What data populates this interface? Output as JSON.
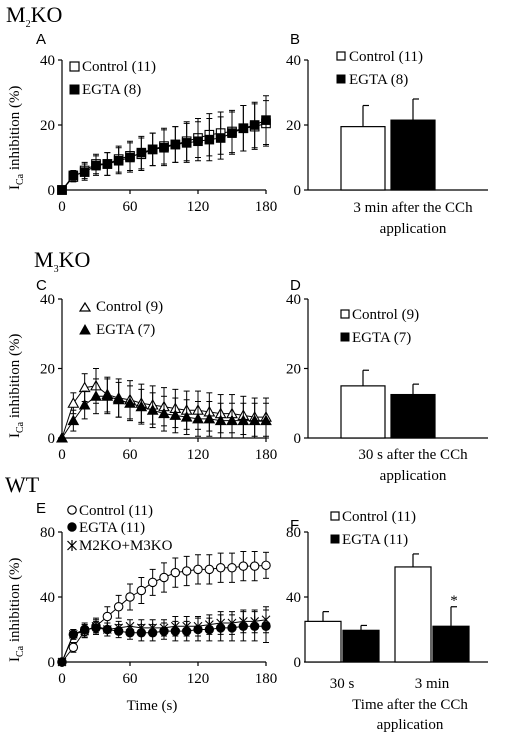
{
  "sections": {
    "m2": {
      "main": "M",
      "sub": "2",
      "rest": "KO"
    },
    "m3": {
      "main": "M",
      "sub": "3",
      "rest": "KO"
    },
    "wt": {
      "text": "WT"
    }
  },
  "ylabel": {
    "main": "I",
    "sub": "Ca",
    "rest": " inhibition (%)"
  },
  "chart_data": [
    {
      "panel": "A",
      "type": "line",
      "ylim": [
        0,
        40
      ],
      "yticks": [
        "0",
        "20",
        "40"
      ],
      "xlim": [
        0,
        180
      ],
      "xticks": [
        "0",
        "60",
        "120",
        "180"
      ],
      "legend_position": "top-left",
      "series": [
        {
          "name": "Control (11)",
          "marker": "square-open",
          "x": [
            0,
            10,
            20,
            30,
            40,
            50,
            60,
            70,
            80,
            90,
            100,
            110,
            120,
            130,
            140,
            150,
            160,
            170,
            180
          ],
          "y": [
            0,
            4,
            6,
            8,
            8,
            9.5,
            10.5,
            11,
            12.5,
            13.5,
            14,
            15,
            16,
            17,
            17.5,
            18,
            19,
            19.5,
            20.5
          ],
          "err": [
            0,
            1.5,
            2.5,
            3,
            3.5,
            4,
            4.5,
            5,
            5,
            5.5,
            5.5,
            6,
            6,
            6.5,
            6.5,
            6.5,
            7,
            7,
            7
          ]
        },
        {
          "name": "EGTA (8)",
          "marker": "square-filled",
          "x": [
            0,
            10,
            20,
            30,
            40,
            50,
            60,
            70,
            80,
            90,
            100,
            110,
            120,
            130,
            140,
            150,
            160,
            170,
            180
          ],
          "y": [
            0,
            4.5,
            5.5,
            7.5,
            8,
            9,
            10,
            11.5,
            12.5,
            13,
            14,
            14.5,
            15,
            15.5,
            16,
            17.5,
            19,
            20,
            21.5
          ],
          "err": [
            0,
            1.5,
            2.5,
            3,
            3.5,
            4,
            4.5,
            5,
            5,
            5.5,
            5.5,
            6,
            6,
            6.5,
            6.5,
            6.5,
            7,
            7,
            7.5
          ]
        }
      ]
    },
    {
      "panel": "B",
      "type": "bar",
      "ylim": [
        0,
        40
      ],
      "yticks": [
        "0",
        "20",
        "40"
      ],
      "legend_position": "top-left",
      "caption": [
        "3 min after the CCh",
        "application"
      ],
      "categories": [
        ""
      ],
      "series": [
        {
          "name": "Control (11)",
          "fill": "#ffffff",
          "values": [
            19.5
          ],
          "err": [
            6.5
          ]
        },
        {
          "name": "EGTA (8)",
          "fill": "#000000",
          "values": [
            21.5
          ],
          "err": [
            6.5
          ]
        }
      ]
    },
    {
      "panel": "C",
      "type": "line",
      "ylim": [
        0,
        40
      ],
      "yticks": [
        "0",
        "20",
        "40"
      ],
      "xlim": [
        0,
        180
      ],
      "xticks": [
        "0",
        "60",
        "120",
        "180"
      ],
      "legend_position": "top-left",
      "series": [
        {
          "name": "Control (9)",
          "marker": "triangle-open",
          "x": [
            0,
            10,
            20,
            30,
            40,
            50,
            60,
            70,
            80,
            90,
            100,
            110,
            120,
            130,
            140,
            150,
            160,
            170,
            180
          ],
          "y": [
            0,
            10,
            14.5,
            15,
            12.5,
            11.5,
            11,
            10,
            9.5,
            9,
            8.5,
            8,
            8,
            7.5,
            7,
            7,
            6.5,
            6,
            6
          ],
          "err": [
            0,
            3,
            4,
            5,
            5,
            5.5,
            5.5,
            5.5,
            5.5,
            5.5,
            5.5,
            5.5,
            5.5,
            5.5,
            5.5,
            5.5,
            5.5,
            5.5,
            5.5
          ]
        },
        {
          "name": "EGTA (7)",
          "marker": "triangle-filled",
          "x": [
            0,
            10,
            20,
            30,
            40,
            50,
            60,
            70,
            80,
            90,
            100,
            110,
            120,
            130,
            140,
            150,
            160,
            170,
            180
          ],
          "y": [
            0,
            5,
            9.5,
            12,
            12,
            11,
            10,
            9,
            8,
            7,
            6.5,
            6,
            5.5,
            5.5,
            5,
            5,
            5,
            5,
            5
          ],
          "err": [
            0,
            3,
            4,
            5,
            5,
            5,
            5,
            5,
            5,
            5,
            5,
            5,
            5,
            5,
            5,
            5,
            5,
            5,
            5
          ]
        }
      ]
    },
    {
      "panel": "D",
      "type": "bar",
      "ylim": [
        0,
        40
      ],
      "yticks": [
        "0",
        "20",
        "40"
      ],
      "legend_position": "top-left",
      "caption": [
        "30 s after the CCh",
        "application"
      ],
      "categories": [
        ""
      ],
      "series": [
        {
          "name": "Control (9)",
          "fill": "#ffffff",
          "values": [
            15
          ],
          "err": [
            4.5
          ]
        },
        {
          "name": "EGTA (7)",
          "fill": "#000000",
          "values": [
            12.5
          ],
          "err": [
            3
          ]
        }
      ]
    },
    {
      "panel": "E",
      "type": "line",
      "ylim": [
        0,
        80
      ],
      "yticks": [
        "0",
        "40",
        "80"
      ],
      "xlim": [
        0,
        180
      ],
      "xticks": [
        "0",
        "60",
        "120",
        "180"
      ],
      "xlabel": "Time (s)",
      "legend_position": "top-left",
      "series": [
        {
          "name": "Control (11)",
          "marker": "circle-open",
          "x": [
            0,
            10,
            20,
            30,
            40,
            50,
            60,
            70,
            80,
            90,
            100,
            110,
            120,
            130,
            140,
            150,
            160,
            170,
            180
          ],
          "y": [
            0,
            9,
            19,
            22,
            28,
            34,
            40,
            44,
            49,
            52,
            55,
            56,
            57,
            57,
            58,
            58,
            59,
            59,
            59.5
          ],
          "err": [
            0,
            3,
            4,
            5,
            6,
            7,
            8,
            8,
            8,
            9,
            9,
            9,
            9,
            9,
            9,
            9,
            9,
            9,
            8
          ]
        },
        {
          "name": "EGTA (11)",
          "marker": "circle-filled",
          "x": [
            0,
            10,
            20,
            30,
            40,
            50,
            60,
            70,
            80,
            90,
            100,
            110,
            120,
            130,
            140,
            150,
            160,
            170,
            180
          ],
          "y": [
            0,
            17,
            20,
            21,
            20,
            19,
            18,
            18,
            18,
            19,
            19,
            19,
            20,
            20,
            21,
            21,
            22,
            22,
            22
          ],
          "err": [
            0,
            3,
            4,
            4,
            4,
            4,
            4,
            5,
            5,
            5,
            6,
            6,
            7,
            7,
            8,
            8,
            9,
            9,
            10
          ]
        },
        {
          "name": "M2KO+M3KO",
          "marker": "star",
          "x": [
            0,
            10,
            20,
            30,
            40,
            50,
            60,
            70,
            80,
            90,
            100,
            110,
            120,
            130,
            140,
            150,
            160,
            170,
            180
          ],
          "y": [
            0,
            17,
            19,
            22,
            20,
            21,
            22,
            21,
            21,
            21,
            22,
            22,
            22,
            23,
            24,
            24,
            25,
            25,
            26
          ],
          "err": [
            0,
            3,
            4,
            4,
            4,
            4,
            4,
            5,
            5,
            5,
            6,
            6,
            6,
            6,
            7,
            7,
            7,
            7,
            8
          ]
        }
      ]
    },
    {
      "panel": "F",
      "type": "bar",
      "ylim": [
        0,
        80
      ],
      "yticks": [
        "0",
        "40",
        "80"
      ],
      "legend_position": "top-left",
      "categories": [
        "30 s",
        "3 min"
      ],
      "caption": [
        "Time after the CCh",
        "application"
      ],
      "significance": {
        "category": "3 min",
        "series": "EGTA (11)",
        "mark": "*"
      },
      "series": [
        {
          "name": "Control (11)",
          "fill": "#ffffff",
          "values": [
            25,
            58.5
          ],
          "err": [
            6,
            8
          ]
        },
        {
          "name": "EGTA (11)",
          "fill": "#000000",
          "values": [
            19.5,
            22
          ],
          "err": [
            3,
            12
          ]
        }
      ]
    }
  ]
}
